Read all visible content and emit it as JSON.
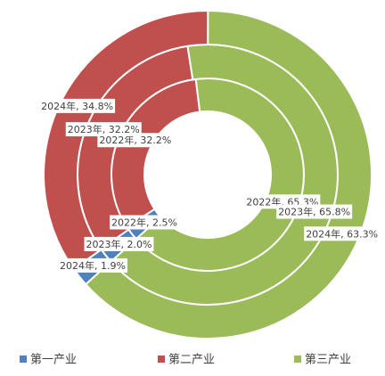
{
  "chart_data": {
    "type": "multi-donut",
    "categories": [
      "第一产业",
      "第二产业",
      "第三产业"
    ],
    "colors": [
      "#4f81bd",
      "#c0504d",
      "#9bbb59"
    ],
    "series": [
      {
        "name": "2022年",
        "values": [
          2.5,
          32.2,
          65.3
        ],
        "value_labels": [
          "2022年, 2.5%",
          "2022年, 32.2%",
          "2022年, 65.3%"
        ]
      },
      {
        "name": "2023年",
        "values": [
          2.0,
          32.2,
          65.8
        ],
        "value_labels": [
          "2023年, 2.0%",
          "2023年, 32.2%",
          "2023年, 65.8%"
        ]
      },
      {
        "name": "2024年",
        "values": [
          1.9,
          34.8,
          63.3
        ],
        "value_labels": [
          "2024年, 1.9%",
          "2024年, 34.8%",
          "2024年, 63.3%"
        ]
      }
    ]
  }
}
